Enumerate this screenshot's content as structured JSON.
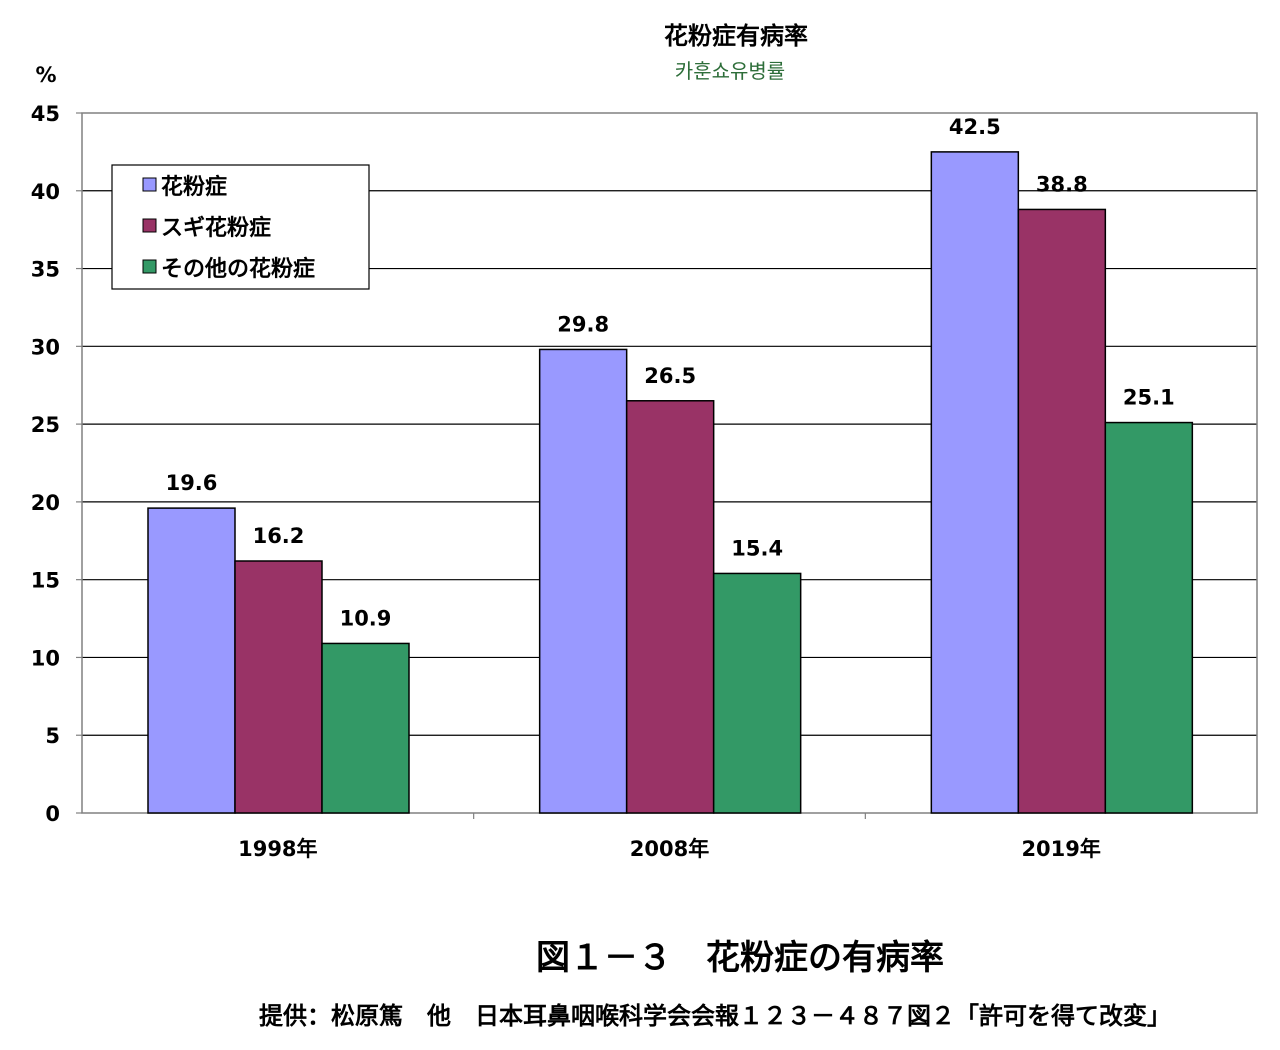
{
  "chart_data": {
    "type": "bar",
    "title": "花粉症有病率",
    "subtitle": "카훈쇼유병률",
    "ylabel": "%",
    "xlabel": "",
    "ylim": [
      0,
      45
    ],
    "yticks": [
      0,
      5,
      10,
      15,
      20,
      25,
      30,
      35,
      40,
      45
    ],
    "categories": [
      "1998年",
      "2008年",
      "2019年"
    ],
    "series": [
      {
        "name": "花粉症",
        "color": "#9999ff",
        "values": [
          19.6,
          29.8,
          42.5
        ]
      },
      {
        "name": "スギ花粉症",
        "color": "#993366",
        "values": [
          16.2,
          26.5,
          38.8
        ]
      },
      {
        "name": "その他の花粉症",
        "color": "#339966",
        "values": [
          10.9,
          15.4,
          25.1
        ]
      }
    ],
    "grid": true,
    "legend_position": "top-left"
  },
  "figure_caption": "図１－３　花粉症の有病率",
  "source_note": "提供：松原篤　他　日本耳鼻咽喉科学会会報１２３－４８７図２「許可を得て改変」"
}
